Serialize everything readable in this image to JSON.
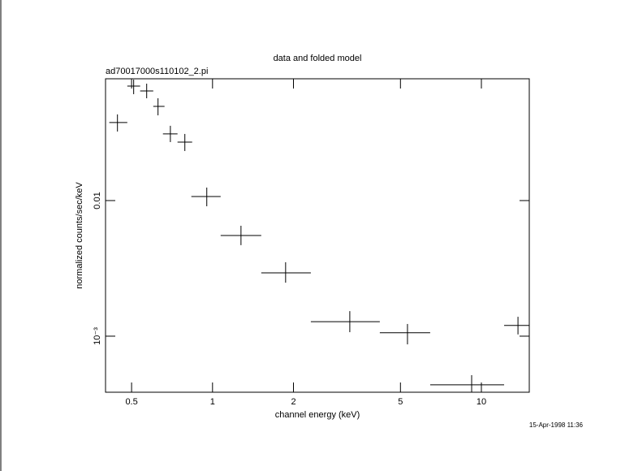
{
  "chart_data": {
    "type": "scatter",
    "title": "data and folded model",
    "subtitle": "ad70017000s110102_2.pi",
    "x_label": "channel energy (keV)",
    "y_label": "normalized counts/sec/keV",
    "timestamp": "15-Apr-1998 11:36",
    "xscale": "log",
    "yscale": "log",
    "xlim": [
      0.4,
      15.07
    ],
    "ylim": [
      0.000386,
      0.0791
    ],
    "xticks": [
      0.5,
      1,
      2,
      5,
      10
    ],
    "yticks": [
      0.01,
      {
        "value": 0.001,
        "label": "10⁻³"
      }
    ],
    "series": [
      {
        "name": "data",
        "color": "#000000",
        "x": [
          0.443,
          0.509,
          0.569,
          0.627,
          0.697,
          0.789,
          0.952,
          1.276,
          1.87,
          3.24,
          5.31,
          9.2,
          13.68
        ],
        "xlow": [
          0.413,
          0.482,
          0.538,
          0.602,
          0.654,
          0.741,
          0.834,
          1.072,
          1.518,
          2.321,
          4.19,
          6.45,
          12.15
        ],
        "xhigh": [
          0.482,
          0.538,
          0.602,
          0.663,
          0.741,
          0.84,
          1.072,
          1.518,
          2.321,
          4.19,
          6.45,
          12.15,
          15.07
        ],
        "values": [
          0.0376,
          0.0699,
          0.0643,
          0.0495,
          0.031,
          0.027,
          0.01071,
          0.00553,
          0.00293,
          0.00128,
          0.00106,
          0.000438,
          0.0012
        ],
        "ylow": [
          0.0323,
          0.0609,
          0.0568,
          0.0425,
          0.027,
          0.0232,
          0.00908,
          0.00469,
          0.00248,
          0.00107,
          0.00087,
          0.00038,
          0.00103
        ],
        "yhigh": [
          0.0432,
          0.078,
          0.0728,
          0.0568,
          0.0356,
          0.031,
          0.01247,
          0.00652,
          0.00351,
          0.00153,
          0.00123,
          0.000516,
          0.00139
        ]
      }
    ]
  }
}
